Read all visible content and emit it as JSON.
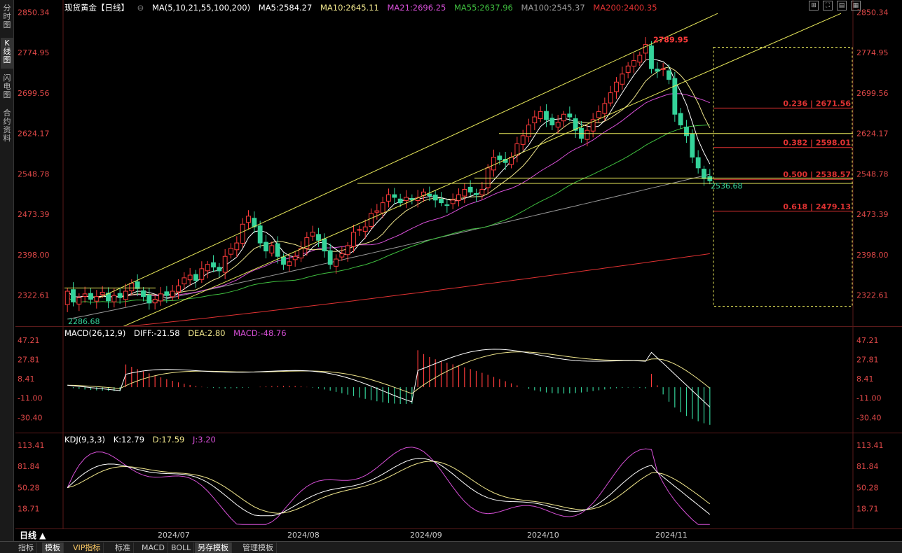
{
  "left_tabs": [
    "分时图",
    "K线图",
    "闪电图",
    "合约资料"
  ],
  "legend": {
    "symbol": "现货黄金【日线】",
    "ma_header": "MA(5,10,21,55,100,200)",
    "ma5": "MA5:2584.27",
    "ma10": "MA10:2645.11",
    "ma21": "MA21:2696.25",
    "ma55": "MA55:2637.96",
    "ma100": "MA100:2545.37",
    "ma200": "MA200:2400.35"
  },
  "colors": {
    "up": "#ff3b3b",
    "down": "#34d39a",
    "ma5": "#ffffff",
    "ma10": "#f0e68c",
    "ma21": "#d64fd6",
    "ma55": "#3fbf3f",
    "ma100": "#9a9a9a",
    "ma200": "#e03232",
    "channel": "#e8e85a",
    "fib": "#e03232",
    "axis": "#e04848"
  },
  "price_axis": [
    "2850.34",
    "2774.95",
    "2699.56",
    "2624.17",
    "2548.78",
    "2473.39",
    "2398.00",
    "2322.61"
  ],
  "annotations": {
    "high": "2789.95",
    "low_start": "2286.68",
    "low_recent": "2536.68"
  },
  "fib_levels": [
    {
      "label": "0.236 | 2671.56",
      "price": 2671.56
    },
    {
      "label": "0.382 | 2598.01",
      "price": 2598.01
    },
    {
      "label": "0.500 | 2538.57",
      "price": 2538.57
    },
    {
      "label": "0.618 | 2479.13",
      "price": 2479.13
    }
  ],
  "macd": {
    "header": "MACD(26,12,9)",
    "diff": "DIFF:-21.58",
    "dea": "DEA:2.80",
    "macd": "MACD:-48.76",
    "axis": [
      "47.21",
      "27.81",
      "8.41",
      "-11.00",
      "-30.40"
    ]
  },
  "kdj": {
    "header": "KDJ(9,3,3)",
    "k": "K:12.79",
    "d": "D:17.59",
    "j": "J:3.20",
    "axis": [
      "113.41",
      "81.84",
      "50.28",
      "18.71"
    ]
  },
  "x_axis": [
    "2024/07",
    "2024/08",
    "2024/09",
    "2024/10",
    "2024/11"
  ],
  "period_label": "日线 ▲",
  "bottom_tabs": [
    "指标",
    "模板",
    "VIP指标",
    "标准",
    "MACD",
    "BOLL",
    "另存模板",
    "管理模板"
  ],
  "toolbar_icons": [
    "grid-icon",
    "fullscreen-icon",
    "layout-icon",
    "list-icon"
  ],
  "toolbar_glyphs": [
    "⊞",
    "⛶",
    "▤",
    "▦"
  ],
  "chart_data": {
    "type": "candlestick",
    "title": "现货黄金【日线】",
    "ylim": [
      2270,
      2860
    ],
    "x_categories": [
      "2024/07",
      "2024/08",
      "2024/09",
      "2024/10",
      "2024/11"
    ],
    "closes": [
      2330,
      2310,
      2318,
      2325,
      2315,
      2320,
      2328,
      2312,
      2322,
      2318,
      2330,
      2345,
      2335,
      2320,
      2308,
      2315,
      2325,
      2322,
      2330,
      2340,
      2355,
      2360,
      2350,
      2372,
      2380,
      2375,
      2368,
      2395,
      2410,
      2420,
      2455,
      2470,
      2450,
      2420,
      2405,
      2415,
      2395,
      2380,
      2385,
      2395,
      2410,
      2430,
      2440,
      2425,
      2405,
      2380,
      2390,
      2400,
      2415,
      2440,
      2445,
      2450,
      2475,
      2480,
      2495,
      2510,
      2505,
      2495,
      2505,
      2500,
      2505,
      2515,
      2508,
      2500,
      2495,
      2490,
      2500,
      2510,
      2520,
      2515,
      2510,
      2520,
      2560,
      2580,
      2575,
      2570,
      2580,
      2605,
      2620,
      2640,
      2655,
      2665,
      2650,
      2640,
      2645,
      2660,
      2655,
      2630,
      2615,
      2630,
      2650,
      2665,
      2680,
      2700,
      2720,
      2735,
      2750,
      2760,
      2770,
      2790,
      2745,
      2740,
      2745,
      2725,
      2660,
      2640,
      2620,
      2580,
      2560,
      2540,
      2536
    ],
    "ma_lines": [
      "MA5",
      "MA10",
      "MA21",
      "MA55",
      "MA100",
      "MA200"
    ]
  }
}
